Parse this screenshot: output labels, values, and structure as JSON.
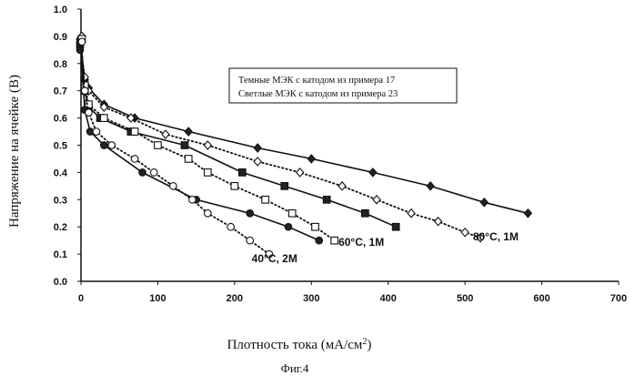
{
  "figure_caption": "Фиг.4",
  "chart_data": {
    "type": "line",
    "title": "",
    "xlabel": "Плотность тока (мА/см",
    "xlabel_sup": "2",
    "xlabel_end": ")",
    "ylabel": "Напряжение на ячейке (В)",
    "xlim": [
      0,
      700
    ],
    "ylim": [
      0.0,
      1.0
    ],
    "x_ticks": [
      "0",
      "100",
      "200",
      "300",
      "400",
      "500",
      "600",
      "700"
    ],
    "y_ticks": [
      "0.0",
      "0.1",
      "0.2",
      "0.3",
      "0.4",
      "0.5",
      "0.6",
      "0.7",
      "0.8",
      "0.9",
      "1.0"
    ],
    "grid": false,
    "legend": {
      "placement": "upper-center box",
      "entries": [
        "Темные МЭК с катодом из примера 17",
        "Светлые МЭК с катодом из примера 23"
      ]
    },
    "annotations": [
      {
        "text": "80°C, 1M",
        "x": 540,
        "y": 0.15
      },
      {
        "text": "60°C, 1M",
        "x": 365,
        "y": 0.13
      },
      {
        "text": "40°C, 2M",
        "x": 252,
        "y": 0.07
      }
    ],
    "series": [
      {
        "group": "80°C, 1M",
        "kind": "dark",
        "marker": "diamond-filled",
        "line": "solid",
        "x": [
          0,
          2,
          5,
          10,
          30,
          70,
          140,
          230,
          300,
          380,
          455,
          525,
          582
        ],
        "y": [
          0.89,
          0.81,
          0.74,
          0.71,
          0.65,
          0.6,
          0.55,
          0.49,
          0.45,
          0.4,
          0.35,
          0.29,
          0.25
        ]
      },
      {
        "group": "80°C, 1M",
        "kind": "light",
        "marker": "diamond-open",
        "line": "dotted",
        "x": [
          0,
          2,
          5,
          10,
          30,
          65,
          110,
          165,
          230,
          285,
          340,
          385,
          430,
          465,
          500,
          520
        ],
        "y": [
          0.9,
          0.81,
          0.75,
          0.7,
          0.64,
          0.6,
          0.54,
          0.5,
          0.44,
          0.4,
          0.35,
          0.3,
          0.25,
          0.22,
          0.18,
          0.16
        ]
      },
      {
        "group": "60°C, 1M",
        "kind": "dark",
        "marker": "square-filled",
        "line": "solid",
        "x": [
          0,
          2,
          5,
          10,
          25,
          65,
          135,
          210,
          265,
          320,
          370,
          410
        ],
        "y": [
          0.87,
          0.78,
          0.7,
          0.64,
          0.6,
          0.55,
          0.5,
          0.4,
          0.35,
          0.3,
          0.25,
          0.2
        ]
      },
      {
        "group": "60°C, 1M",
        "kind": "light",
        "marker": "square-open",
        "line": "dotted",
        "x": [
          0,
          2,
          5,
          10,
          30,
          70,
          100,
          140,
          165,
          200,
          240,
          275,
          305,
          330
        ],
        "y": [
          0.89,
          0.8,
          0.72,
          0.65,
          0.6,
          0.55,
          0.5,
          0.45,
          0.4,
          0.35,
          0.3,
          0.25,
          0.2,
          0.15
        ]
      },
      {
        "group": "40°C, 2M",
        "kind": "dark",
        "marker": "circle-filled",
        "line": "solid",
        "x": [
          0,
          2,
          5,
          12,
          30,
          80,
          150,
          220,
          270,
          310
        ],
        "y": [
          0.85,
          0.75,
          0.63,
          0.55,
          0.5,
          0.4,
          0.3,
          0.25,
          0.2,
          0.15
        ]
      },
      {
        "group": "40°C, 2M",
        "kind": "light",
        "marker": "circle-open",
        "line": "dotted",
        "x": [
          0,
          2,
          5,
          10,
          20,
          40,
          70,
          95,
          120,
          145,
          165,
          195,
          220,
          245
        ],
        "y": [
          0.88,
          0.79,
          0.7,
          0.62,
          0.55,
          0.5,
          0.45,
          0.4,
          0.35,
          0.3,
          0.25,
          0.2,
          0.15,
          0.1
        ]
      }
    ]
  }
}
